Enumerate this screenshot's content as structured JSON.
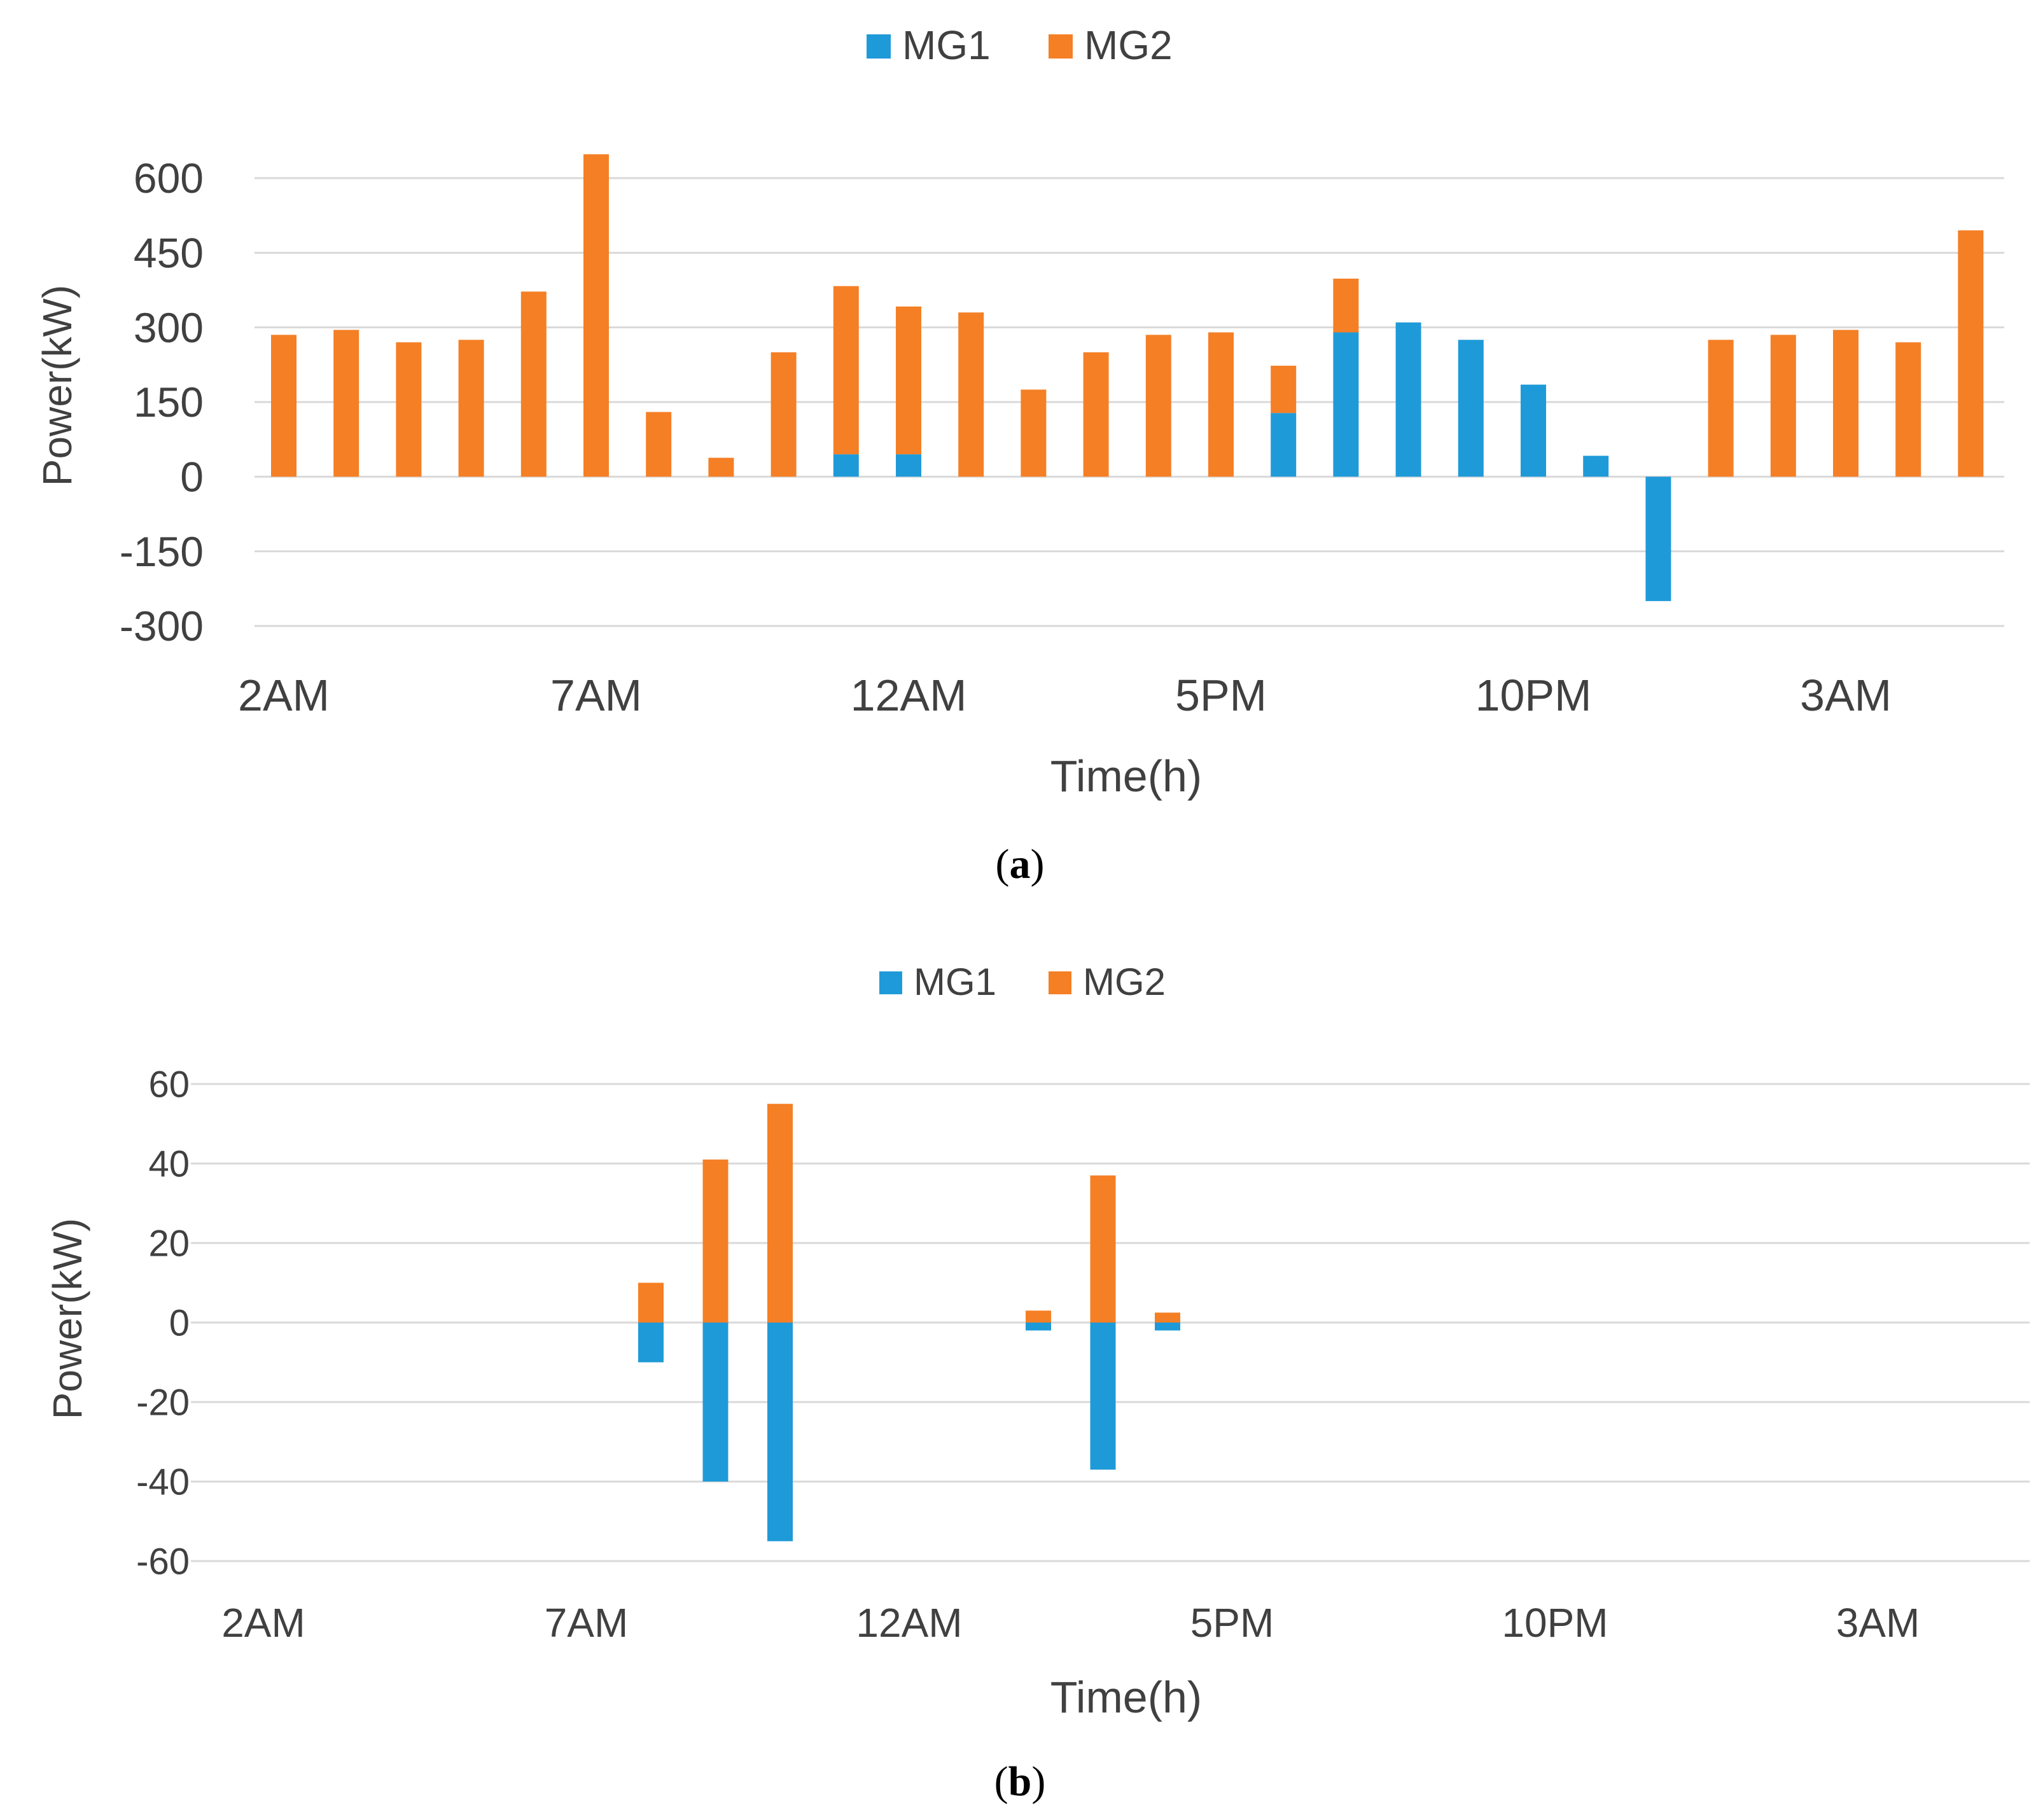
{
  "colors": {
    "MG1": "#1f9ad8",
    "MG2": "#f57f25",
    "grid": "#d9d9d9",
    "text": "#404040"
  },
  "chart_data": [
    {
      "id": "a",
      "type": "bar",
      "stacked": true,
      "caption": {
        "open": "(",
        "letter": "a",
        "close": ")"
      },
      "title": "",
      "xlabel": "Time(h)",
      "ylabel": "Power(kW)",
      "ylim": [
        -300,
        600
      ],
      "yticks": [
        "600",
        "450",
        "300",
        "150",
        "0",
        "-150",
        "-300"
      ],
      "ytick_values": [
        600,
        450,
        300,
        150,
        0,
        -150,
        -300
      ],
      "xtick_labels": [
        "2AM",
        "7AM",
        "12AM",
        "5PM",
        "10PM",
        "3AM"
      ],
      "xtick_index": [
        0,
        5,
        10,
        15,
        20,
        25
      ],
      "legend": [
        "MG1",
        "MG2"
      ],
      "legend_position": "top-center",
      "grid": true,
      "hours": 28,
      "series": [
        {
          "name": "MG1",
          "values": [
            0,
            0,
            0,
            0,
            0,
            0,
            0,
            0,
            0,
            45,
            45,
            0,
            0,
            0,
            0,
            0,
            128,
            290,
            310,
            275,
            185,
            42,
            -250,
            0,
            0,
            0,
            0,
            0
          ]
        },
        {
          "name": "MG2",
          "values": [
            285,
            295,
            270,
            275,
            372,
            648,
            130,
            38,
            250,
            338,
            297,
            330,
            175,
            250,
            285,
            290,
            95,
            108,
            0,
            0,
            0,
            0,
            0,
            275,
            285,
            295,
            270,
            495
          ]
        }
      ]
    },
    {
      "id": "b",
      "type": "bar",
      "stacked": true,
      "caption": {
        "open": "(",
        "letter": "b",
        "close": ")"
      },
      "title": "",
      "xlabel": "Time(h)",
      "ylabel": "Power(kW)",
      "ylim": [
        -60,
        60
      ],
      "yticks": [
        "60",
        "40",
        "20",
        "0",
        "-20",
        "-40",
        "-60"
      ],
      "ytick_values": [
        60,
        40,
        20,
        0,
        -20,
        -40,
        -60
      ],
      "xtick_labels": [
        "2AM",
        "7AM",
        "12AM",
        "5PM",
        "10PM",
        "3AM"
      ],
      "xtick_index": [
        0,
        5,
        10,
        15,
        20,
        25
      ],
      "legend": [
        "MG1",
        "MG2"
      ],
      "legend_position": "top-center",
      "grid": true,
      "hours": 28,
      "series": [
        {
          "name": "MG1",
          "values": [
            0,
            0,
            0,
            0,
            0,
            0,
            -10,
            -40,
            -55,
            0,
            0,
            0,
            -2,
            -37,
            -2,
            0,
            0,
            0,
            0,
            0,
            0,
            0,
            0,
            0,
            0,
            0,
            0,
            0
          ]
        },
        {
          "name": "MG2",
          "values": [
            0,
            0,
            0,
            0,
            0,
            0,
            10,
            41,
            55,
            0,
            0,
            0,
            3,
            37,
            2.5,
            0,
            0,
            0,
            0,
            0,
            0,
            0,
            0,
            0,
            0,
            0,
            0,
            0
          ]
        }
      ]
    }
  ]
}
